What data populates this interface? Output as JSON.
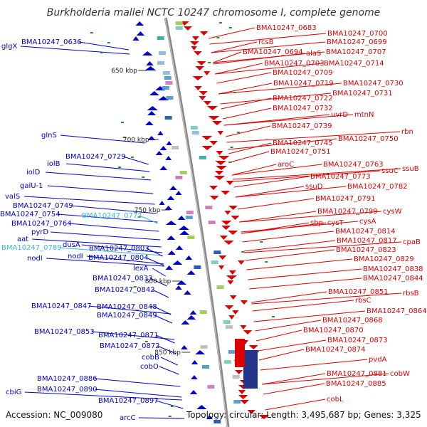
{
  "title": "Burkholderia mallei NCTC 10247 chromosome I, complete genome",
  "accession": "Accession: NC_009080",
  "topology": "Topology: circular; Length: 3,495,687 bp; Genes: 3,325",
  "colors": {
    "forward": "#dd0000",
    "reverse": "#0000cc",
    "highlight": "#33bbdd",
    "backbone": "#888888",
    "tick": "#2a8a2a"
  },
  "kbp_marks": [
    "650 kbp",
    "700 kbp",
    "750 kbp",
    "800 kbp",
    "850 kbp"
  ],
  "left_labels": [
    {
      "text": "glgX",
      "hl": false
    },
    {
      "text": "BMA10247_0636",
      "hl": false
    },
    {
      "text": "glnS",
      "hl": false
    },
    {
      "text": "BMA10247_0729",
      "hl": false
    },
    {
      "text": "iolB",
      "hl": false
    },
    {
      "text": "iolD",
      "hl": false
    },
    {
      "text": "galU-1",
      "hl": false
    },
    {
      "text": "valS",
      "hl": false
    },
    {
      "text": "BMA10247_0749",
      "hl": false
    },
    {
      "text": "BMA10247_0754",
      "hl": false
    },
    {
      "text": "BMA10247_0772",
      "hl": true
    },
    {
      "text": "BMA10247_0764",
      "hl": false
    },
    {
      "text": "pyrD",
      "hl": false
    },
    {
      "text": "aat",
      "hl": false
    },
    {
      "text": "dusA",
      "hl": false
    },
    {
      "text": "BMA10247_0789",
      "hl": true
    },
    {
      "text": "BMA10247_0803",
      "hl": false
    },
    {
      "text": "nodI",
      "hl": false
    },
    {
      "text": "nodI",
      "hl": false
    },
    {
      "text": "BMA10247_0804",
      "hl": false
    },
    {
      "text": "lexA",
      "hl": false
    },
    {
      "text": "BMA10247_0833",
      "hl": false
    },
    {
      "text": "BMA10247_0842",
      "hl": false
    },
    {
      "text": "BMA10247_0847",
      "hl": false
    },
    {
      "text": "BMA10247_0848",
      "hl": false
    },
    {
      "text": "BMA10247_0849",
      "hl": false
    },
    {
      "text": "BMA10247_0853",
      "hl": false
    },
    {
      "text": "BMA10247_0871",
      "hl": false
    },
    {
      "text": "BMA10247_0872",
      "hl": false
    },
    {
      "text": "cobB",
      "hl": false
    },
    {
      "text": "cobO",
      "hl": false
    },
    {
      "text": "BMA10247_0886",
      "hl": false
    },
    {
      "text": "BMA10247_0890",
      "hl": false
    },
    {
      "text": "cbiG",
      "hl": false
    },
    {
      "text": "BMA10247_0897",
      "hl": false
    },
    {
      "text": "arcC",
      "hl": false
    }
  ],
  "right_labels": [
    {
      "text": "BMA10247_0683"
    },
    {
      "text": "BMA10247_0700"
    },
    {
      "text": "rcsB"
    },
    {
      "text": "BMA10247_0699"
    },
    {
      "text": "alaS"
    },
    {
      "text": "BMA10247_0694"
    },
    {
      "text": "BMA10247_0707"
    },
    {
      "text": "BMA10247_0703"
    },
    {
      "text": "BMA10247_0714"
    },
    {
      "text": "BMA10247_0709"
    },
    {
      "text": "BMA10247_0719"
    },
    {
      "text": "BMA10247_0730"
    },
    {
      "text": "BMA10247_0731"
    },
    {
      "text": "BMA10247_0722"
    },
    {
      "text": "BMA10247_0732"
    },
    {
      "text": "uvrD"
    },
    {
      "text": "mtnN"
    },
    {
      "text": "BMA10247_0739"
    },
    {
      "text": "rbn"
    },
    {
      "text": "BMA10247_0750"
    },
    {
      "text": "BMA10247_0745"
    },
    {
      "text": "BMA10247_0751"
    },
    {
      "text": "aroC"
    },
    {
      "text": "BMA10247_0763"
    },
    {
      "text": "ssuB"
    },
    {
      "text": "ssuC"
    },
    {
      "text": "BMA10247_0773"
    },
    {
      "text": "ssuD"
    },
    {
      "text": "BMA10247_0782"
    },
    {
      "text": "BMA10247_0791"
    },
    {
      "text": "BMA10247_0799"
    },
    {
      "text": "cysW"
    },
    {
      "text": "sbp"
    },
    {
      "text": "cysT"
    },
    {
      "text": "cysA"
    },
    {
      "text": "BMA10247_0814"
    },
    {
      "text": "BMA10247_0817"
    },
    {
      "text": "cpaB"
    },
    {
      "text": "BMA10247_0823"
    },
    {
      "text": "BMA10247_0829"
    },
    {
      "text": "BMA10247_0838"
    },
    {
      "text": "BMA10247_0844"
    },
    {
      "text": "BMA10247_0851"
    },
    {
      "text": "rbsB"
    },
    {
      "text": "rbsC"
    },
    {
      "text": "BMA10247_0864"
    },
    {
      "text": "BMA10247_0868"
    },
    {
      "text": "BMA10247_0870"
    },
    {
      "text": "BMA10247_0873"
    },
    {
      "text": "BMA10247_0874"
    },
    {
      "text": "pvdA"
    },
    {
      "text": "BMA10247_0881"
    },
    {
      "text": "cobW"
    },
    {
      "text": "BMA10247_0885"
    },
    {
      "text": "cobL"
    }
  ]
}
